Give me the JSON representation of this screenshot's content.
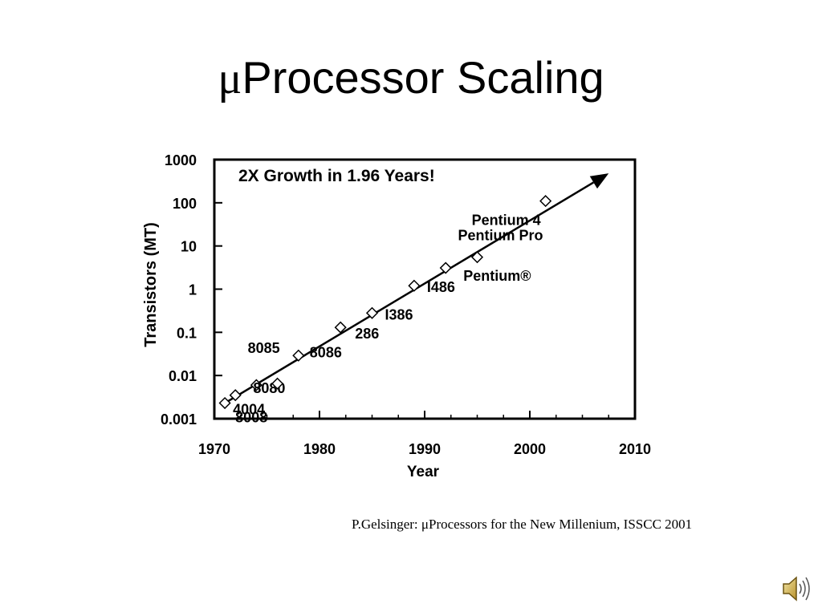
{
  "slide": {
    "title_symbol": "μ",
    "title_text": "Processor Scaling",
    "caption": "P.Gelsinger: μProcessors for the New Millenium, ISSCC 2001"
  },
  "chart_data": {
    "type": "scatter",
    "title": "2X Growth in 1.96 Years!",
    "xlabel": "Year",
    "ylabel": "Transistors (MT)",
    "xlim": [
      1970,
      2010
    ],
    "ylim": [
      0.001,
      1000
    ],
    "yscale": "log",
    "x_ticks": [
      1970,
      1980,
      1990,
      2000,
      2010
    ],
    "y_ticks": [
      {
        "value": 0.001,
        "label": "0.001"
      },
      {
        "value": 0.01,
        "label": "0.01"
      },
      {
        "value": 0.1,
        "label": "0.1"
      },
      {
        "value": 1,
        "label": "1"
      },
      {
        "value": 10,
        "label": "10"
      },
      {
        "value": 100,
        "label": "100"
      },
      {
        "value": 1000,
        "label": "1000"
      }
    ],
    "grid": false,
    "trend_line": {
      "x": [
        1971,
        2007.5
      ],
      "y": [
        0.0023,
        480
      ]
    },
    "points": [
      {
        "label": "4004",
        "x": 1971,
        "y": 0.0023
      },
      {
        "label": "8008",
        "x": 1972,
        "y": 0.0035
      },
      {
        "label": "8080",
        "x": 1974,
        "y": 0.006
      },
      {
        "label": "8085",
        "x": 1976,
        "y": 0.0065
      },
      {
        "label": "8086",
        "x": 1978,
        "y": 0.029
      },
      {
        "label": "286",
        "x": 1982,
        "y": 0.13
      },
      {
        "label": "I386",
        "x": 1985,
        "y": 0.28
      },
      {
        "label": "I486",
        "x": 1989,
        "y": 1.2
      },
      {
        "label": "Pentium®",
        "x": 1992,
        "y": 3.1
      },
      {
        "label": "Pentium Pro",
        "x": 1995,
        "y": 5.5
      },
      {
        "label": "Pentium 4",
        "x": 2001.5,
        "y": 110
      }
    ]
  },
  "audio_icon": "speaker-icon"
}
